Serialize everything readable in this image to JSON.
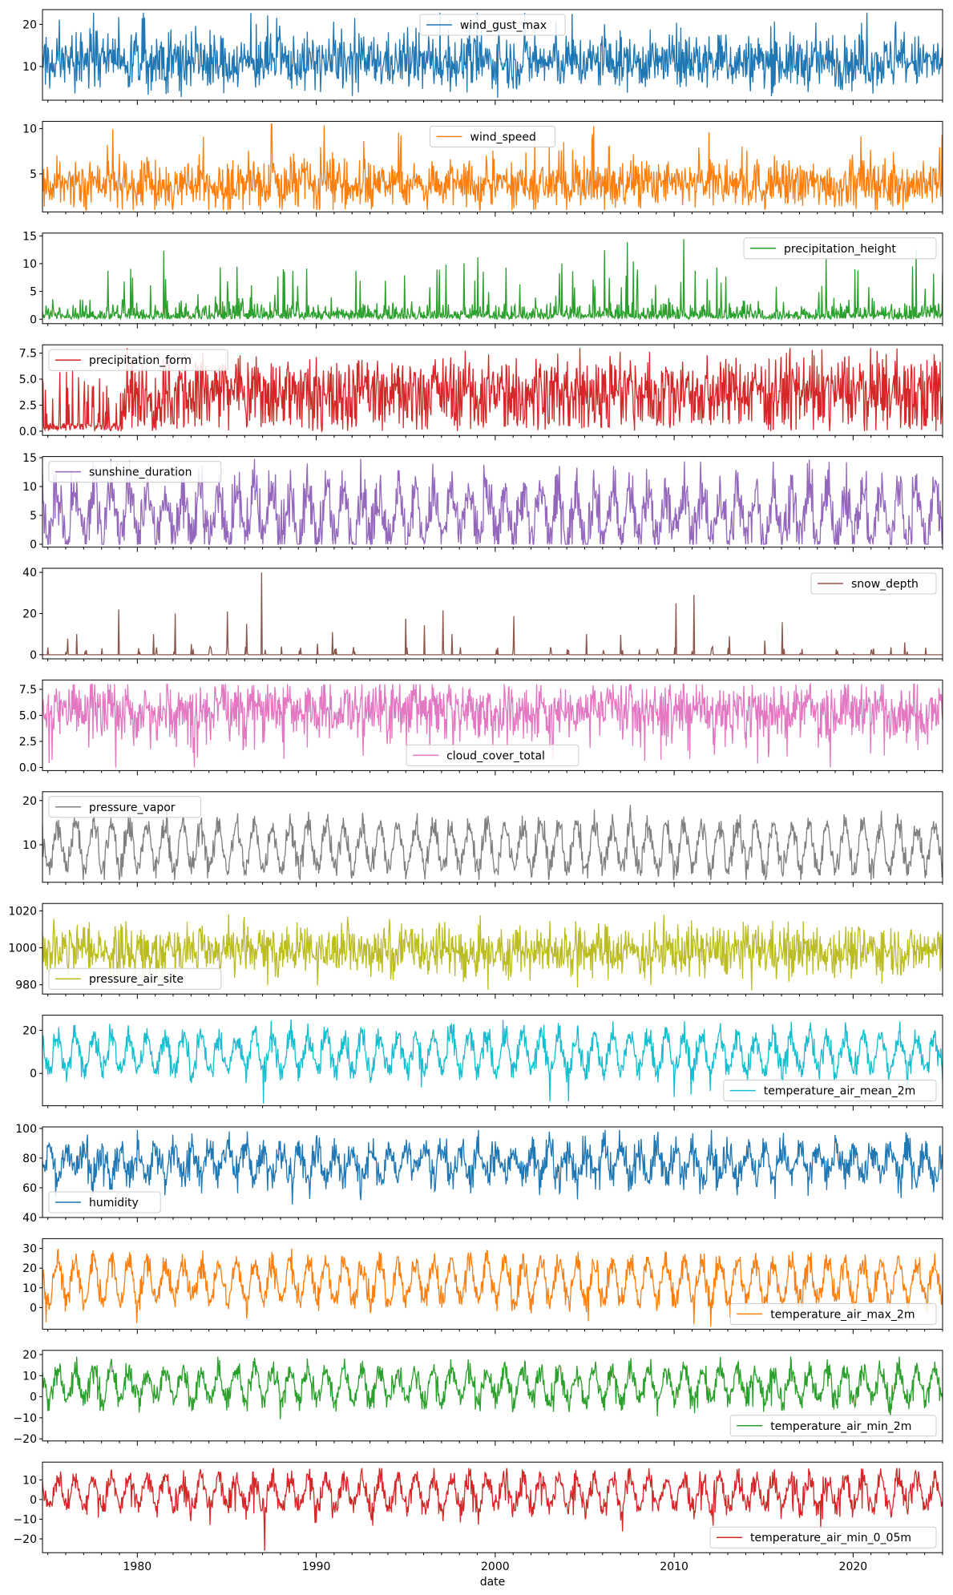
{
  "chart_data": {
    "type": "line",
    "xlabel": "date",
    "x_range": [
      1974.7,
      2025.0
    ],
    "x_ticks": [
      1980,
      1990,
      2000,
      2010,
      2020
    ],
    "x_tick_labels": [
      "1980",
      "1990",
      "2000",
      "2010",
      "2020"
    ],
    "series": [
      {
        "name": "wind_gust_max",
        "color": "#1f77b4",
        "ylim": [
          2,
          23.5
        ],
        "yticks": [
          10,
          20
        ],
        "ytick_labels": [
          "10",
          "20"
        ],
        "legend": "upper-center",
        "pattern": "noise",
        "base": 11,
        "amp": 0,
        "noise": 3.2,
        "spike_prob": 0.04,
        "spike_size": 8,
        "clip": [
          2.5,
          22.8
        ]
      },
      {
        "name": "wind_speed",
        "color": "#ff7f0e",
        "ylim": [
          0.8,
          10.8
        ],
        "yticks": [
          5,
          10
        ],
        "ytick_labels": [
          "5",
          "10"
        ],
        "legend": "upper-center",
        "pattern": "noise",
        "base": 3.8,
        "amp": 0.4,
        "noise": 1.3,
        "spike_prob": 0.05,
        "spike_size": 3.5,
        "clip": [
          1.0,
          10.5
        ]
      },
      {
        "name": "precipitation_height",
        "color": "#2ca02c",
        "ylim": [
          -0.8,
          15.5
        ],
        "yticks": [
          0,
          5,
          10,
          15
        ],
        "ytick_labels": [
          "0",
          "5",
          "10",
          "15"
        ],
        "legend": "upper-right",
        "pattern": "precip",
        "base": 0,
        "amp": 0,
        "noise": 2.0,
        "spike_prob": 0.06,
        "spike_size": 9,
        "clip": [
          0,
          15
        ]
      },
      {
        "name": "precipitation_form",
        "color": "#d62728",
        "ylim": [
          -0.4,
          8.3
        ],
        "yticks": [
          0.0,
          2.5,
          5.0,
          7.5
        ],
        "ytick_labels": [
          "0.0",
          "2.5",
          "5.0",
          "7.5"
        ],
        "legend": "upper-left",
        "pattern": "form",
        "base": 4.2,
        "amp": 0,
        "noise": 2.2,
        "spike_prob": 0.05,
        "spike_size": 3,
        "clip": [
          0,
          8
        ]
      },
      {
        "name": "sunshine_duration",
        "color": "#9467bd",
        "ylim": [
          -0.5,
          15.2
        ],
        "yticks": [
          0,
          5,
          10,
          15
        ],
        "ytick_labels": [
          "0",
          "5",
          "10",
          "15"
        ],
        "legend": "upper-left",
        "pattern": "seasonal",
        "base": 5,
        "amp": 4.2,
        "noise": 2.5,
        "spike_prob": 0.03,
        "spike_size": 4,
        "clip": [
          0,
          14.8
        ]
      },
      {
        "name": "snow_depth",
        "color": "#8c564b",
        "ylim": [
          -2,
          42
        ],
        "yticks": [
          0,
          20,
          40
        ],
        "ytick_labels": [
          "0",
          "20",
          "40"
        ],
        "legend": "upper-right",
        "pattern": "snow",
        "base": 0,
        "amp": 0,
        "noise": 0,
        "spike_prob": 0,
        "spike_size": 0,
        "clip": [
          0,
          40
        ]
      },
      {
        "name": "cloud_cover_total",
        "color": "#e377c2",
        "ylim": [
          -0.3,
          8.4
        ],
        "yticks": [
          0.0,
          2.5,
          5.0,
          7.5
        ],
        "ytick_labels": [
          "0.0",
          "2.5",
          "5.0",
          "7.5"
        ],
        "legend": "lower-center",
        "pattern": "noise",
        "base": 5.6,
        "amp": 0.5,
        "noise": 1.3,
        "spike_prob": 0.05,
        "spike_size": -3.5,
        "clip": [
          0,
          8
        ]
      },
      {
        "name": "pressure_vapor",
        "color": "#7f7f7f",
        "ylim": [
          1.5,
          22
        ],
        "yticks": [
          10,
          20
        ],
        "ytick_labels": [
          "10",
          "20"
        ],
        "legend": "upper-left",
        "pattern": "seasonal",
        "base": 9.5,
        "amp": 5,
        "noise": 1.6,
        "spike_prob": 0.01,
        "spike_size": 3,
        "clip": [
          2,
          21.5
        ]
      },
      {
        "name": "pressure_air_site",
        "color": "#bcbd22",
        "ylim": [
          975,
          1024
        ],
        "yticks": [
          980,
          1000,
          1020
        ],
        "ytick_labels": [
          "980",
          "1000",
          "1020"
        ],
        "legend": "lower-left",
        "pattern": "noise",
        "base": 999,
        "amp": 0,
        "noise": 7,
        "spike_prob": 0.04,
        "spike_size": -10,
        "clip": [
          977,
          1022
        ]
      },
      {
        "name": "temperature_air_mean_2m",
        "color": "#17becf",
        "ylim": [
          -15,
          27
        ],
        "yticks": [
          0,
          20
        ],
        "ytick_labels": [
          "0",
          "20"
        ],
        "legend": "lower-right",
        "pattern": "seasonal",
        "base": 9.5,
        "amp": 8.5,
        "noise": 3.2,
        "spike_prob": 0.015,
        "spike_size": -8,
        "clip": [
          -14,
          26
        ]
      },
      {
        "name": "humidity",
        "color": "#1f77b4",
        "ylim": [
          40,
          101
        ],
        "yticks": [
          40,
          60,
          80,
          100
        ],
        "ytick_labels": [
          "40",
          "60",
          "80",
          "100"
        ],
        "legend": "lower-left",
        "pattern": "seasonal_inv",
        "base": 77,
        "amp": 9,
        "noise": 6,
        "spike_prob": 0.03,
        "spike_size": -12,
        "clip": [
          44,
          99
        ]
      },
      {
        "name": "temperature_air_max_2m",
        "color": "#ff7f0e",
        "ylim": [
          -11,
          35
        ],
        "yticks": [
          0,
          10,
          20,
          30
        ],
        "ytick_labels": [
          "0",
          "10",
          "20",
          "30"
        ],
        "legend": "lower-right",
        "pattern": "seasonal",
        "base": 13.5,
        "amp": 10,
        "noise": 3.5,
        "spike_prob": 0.015,
        "spike_size": -8,
        "clip": [
          -10,
          34
        ]
      },
      {
        "name": "temperature_air_min_2m",
        "color": "#2ca02c",
        "ylim": [
          -21,
          22
        ],
        "yticks": [
          -20,
          -10,
          0,
          10,
          20
        ],
        "ytick_labels": [
          "−20",
          "−10",
          "0",
          "10",
          "20"
        ],
        "legend": "lower-right",
        "pattern": "seasonal",
        "base": 5.5,
        "amp": 7,
        "noise": 3,
        "spike_prob": 0.02,
        "spike_size": -9,
        "clip": [
          -19,
          19
        ]
      },
      {
        "name": "temperature_air_min_0_05m",
        "color": "#d62728",
        "ylim": [
          -27,
          19
        ],
        "yticks": [
          -20,
          -10,
          0,
          10
        ],
        "ytick_labels": [
          "−20",
          "−10",
          "0",
          "10"
        ],
        "legend": "lower-right",
        "pattern": "seasonal",
        "base": 3.5,
        "amp": 7.5,
        "noise": 3.2,
        "spike_prob": 0.02,
        "spike_size": -11,
        "clip": [
          -26,
          16
        ]
      }
    ]
  }
}
